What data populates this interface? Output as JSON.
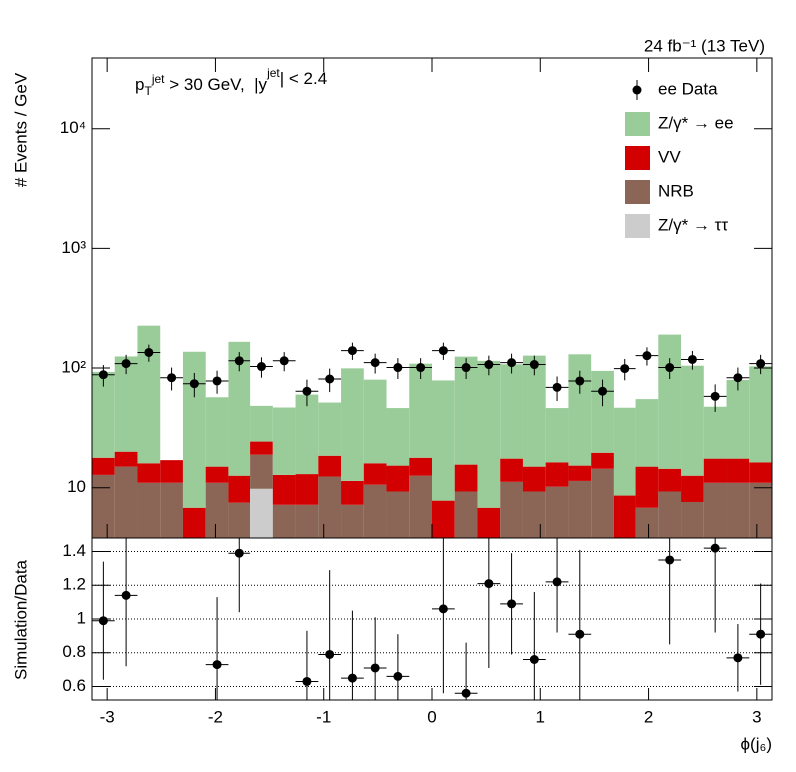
{
  "chart_data": [
    {
      "type": "stacked-histogram",
      "luminosity": "24 fb⁻¹ (13 TeV)",
      "annotation": [
        "p",
        "T",
        "jet",
        " > 30 GeV,  |y",
        "jet",
        "| < 2.4"
      ],
      "ylabel": "# Events / GeV",
      "log_y": true,
      "bins": [
        -3.14,
        -2.93,
        -2.72,
        -2.51,
        -2.3,
        -2.09,
        -1.88,
        -1.68,
        -1.47,
        -1.26,
        -1.05,
        -0.84,
        -0.63,
        -0.42,
        -0.21,
        0,
        0.21,
        0.42,
        0.63,
        0.84,
        1.05,
        1.26,
        1.47,
        1.68,
        1.88,
        2.09,
        2.3,
        2.51,
        2.72,
        2.93,
        3.14
      ],
      "xlim": [
        -3.14,
        3.14
      ],
      "ylim": [
        3.8,
        39000
      ],
      "yticks": [
        10,
        {
          "value": 100,
          "label": "10²"
        },
        {
          "value": 1000,
          "label": "10³"
        },
        {
          "value": 10000,
          "label": "10⁴"
        }
      ],
      "legend": "upper right",
      "points": {
        "name": "ee Data",
        "color": "#000000",
        "values": [
          88,
          109,
          135,
          83,
          74,
          78,
          115,
          103,
          115,
          64,
          81,
          140,
          111,
          101,
          101,
          140,
          101,
          107,
          111,
          107,
          69,
          78,
          64,
          99,
          127,
          101,
          118,
          58,
          83,
          109
        ],
        "errors": [
          18,
          20,
          22,
          18,
          17,
          17,
          21,
          20,
          21,
          16,
          18,
          23,
          21,
          20,
          20,
          23,
          20,
          20,
          21,
          20,
          16,
          17,
          16,
          20,
          22,
          20,
          21,
          15,
          18,
          20
        ]
      },
      "series": [
        {
          "name": "Z/γ* → ττ",
          "color": "#cccccc",
          "values": [
            0,
            0,
            0,
            0,
            0,
            0,
            0,
            9.8,
            0,
            0,
            0,
            0,
            0,
            0,
            0,
            0,
            0,
            0,
            0,
            0,
            0,
            0,
            0,
            0,
            0,
            0,
            0,
            0,
            0,
            0
          ]
        },
        {
          "name": "NRB",
          "color": "#8b6656",
          "values": [
            12.8,
            15,
            11,
            11,
            3,
            11,
            7.5,
            9.1,
            7.2,
            7.2,
            12.4,
            7.2,
            10.6,
            9.3,
            12.6,
            3,
            9.3,
            3,
            11.2,
            9.3,
            10.2,
            11.4,
            14.4,
            3,
            6.8,
            9.3,
            7.6,
            11,
            11,
            11
          ]
        },
        {
          "name": "VV",
          "color": "#d20000",
          "values": [
            5,
            5,
            5,
            6,
            3.8,
            4,
            5.1,
            5.4,
            5.6,
            5.8,
            6.1,
            4.2,
            5.4,
            6,
            5.2,
            4.8,
            6.3,
            3.8,
            6.3,
            5.7,
            6.1,
            3.9,
            5.2,
            5.6,
            8.2,
            5.1,
            5,
            6.5,
            6.5,
            5.3
          ]
        },
        {
          "name": "Z/γ* → ee",
          "color": "#99cc99",
          "values": [
            75,
            105,
            210,
            0,
            130,
            42,
            153,
            24,
            34,
            47,
            33,
            88,
            64,
            31,
            91,
            71,
            109,
            108,
            90,
            112,
            30,
            115,
            75,
            38,
            40,
            176,
            92,
            30,
            62,
            87
          ]
        }
      ]
    },
    {
      "type": "ratio",
      "ylabel": "Simulation/Data",
      "xlabel": "ϕ(j₆)",
      "xlim": [
        -3.14,
        3.14
      ],
      "xticks": [
        -3,
        -2,
        -1,
        0,
        1,
        2,
        3
      ],
      "ylim": [
        0.52,
        1.48
      ],
      "yticks": [
        0.6,
        0.8,
        1,
        1.2,
        1.4
      ],
      "grid": true,
      "values": [
        0.99,
        1.14,
        null,
        null,
        null,
        0.73,
        1.39,
        null,
        null,
        0.63,
        0.79,
        0.65,
        0.71,
        0.66,
        null,
        1.06,
        0.56,
        1.21,
        1.09,
        0.76,
        1.22,
        0.91,
        null,
        null,
        null,
        1.35,
        null,
        1.42,
        0.77,
        0.91
      ],
      "errors": [
        0.35,
        0.42,
        null,
        null,
        null,
        0.4,
        0.35,
        null,
        null,
        0.3,
        0.5,
        0.4,
        0.3,
        0.25,
        null,
        0.5,
        0.3,
        0.5,
        0.3,
        0.4,
        0.3,
        0.5,
        null,
        null,
        null,
        0.5,
        null,
        0.5,
        0.2,
        0.3
      ]
    }
  ]
}
